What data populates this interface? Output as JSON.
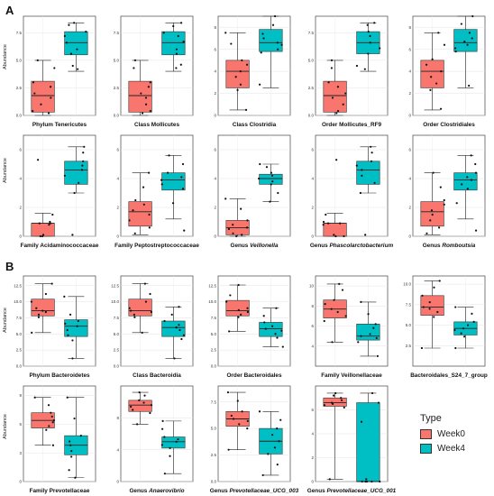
{
  "figure": {
    "section_a": "A",
    "section_b": "B",
    "ylabel": "Abundance",
    "legend": {
      "title": "Type",
      "items": [
        {
          "label": "Week0",
          "color": "#F8766D"
        },
        {
          "label": "Week4",
          "color": "#00BFC4"
        }
      ]
    }
  },
  "chart_data": [
    {
      "type": "box",
      "title": "Phylum Tenericutes",
      "italic": "",
      "ylim": [
        0,
        9
      ],
      "yticks": [
        "0.0",
        "2.5",
        "5.0",
        "7.5"
      ],
      "tickvals": [
        0,
        2.5,
        5,
        7.5
      ],
      "series": [
        {
          "name": "Week0",
          "min": 0,
          "q1": 0.3,
          "median": 1.8,
          "q3": 3.1,
          "max": 5,
          "points": [
            0.2,
            0.4,
            1.0,
            1.6,
            2.0,
            2.6,
            3.0,
            4.3,
            5.0
          ]
        },
        {
          "name": "Week4",
          "min": 4,
          "q1": 5.5,
          "median": 6.6,
          "q3": 7.6,
          "max": 8.4,
          "points": [
            4.2,
            4.5,
            5.6,
            6.0,
            6.6,
            7.2,
            7.6,
            8.2,
            8.4
          ]
        }
      ]
    },
    {
      "type": "box",
      "title": "Class Mollicutes",
      "italic": "",
      "ylim": [
        0,
        9
      ],
      "yticks": [
        "0.0",
        "2.5",
        "5.0",
        "7.5"
      ],
      "tickvals": [
        0,
        2.5,
        5,
        7.5
      ],
      "series": [
        {
          "name": "Week0",
          "min": 0,
          "q1": 0.3,
          "median": 1.8,
          "q3": 3.1,
          "max": 5,
          "points": [
            0.2,
            0.4,
            1.0,
            1.6,
            2.0,
            2.6,
            3.0,
            4.3,
            5.0
          ]
        },
        {
          "name": "Week4",
          "min": 4,
          "q1": 5.5,
          "median": 6.6,
          "q3": 7.6,
          "max": 8.4,
          "points": [
            4.3,
            4.6,
            5.6,
            6.0,
            6.7,
            7.2,
            7.5,
            8.1,
            8.4
          ]
        }
      ]
    },
    {
      "type": "box",
      "title": "Class Clostridia",
      "italic": "",
      "ylim": [
        0,
        9
      ],
      "yticks": [
        "0",
        "2",
        "4",
        "6",
        "8"
      ],
      "tickvals": [
        0,
        2,
        4,
        6,
        8
      ],
      "series": [
        {
          "name": "Week0",
          "min": 0.5,
          "q1": 2.5,
          "median": 4,
          "q3": 5,
          "max": 7.5,
          "points": [
            0.5,
            2.3,
            2.8,
            3.5,
            4.0,
            4.6,
            5.0,
            6.5,
            7.5
          ]
        },
        {
          "name": "Week4",
          "min": 2.5,
          "q1": 5.8,
          "median": 6.6,
          "q3": 7.8,
          "max": 9,
          "points": [
            2.8,
            5.7,
            6.0,
            6.4,
            6.6,
            7.0,
            7.4,
            8.2,
            9.0
          ]
        }
      ]
    },
    {
      "type": "box",
      "title": "Order Mollicutes_RF9",
      "italic": "",
      "ylim": [
        0,
        9
      ],
      "yticks": [
        "0.0",
        "2.5",
        "5.0",
        "7.5"
      ],
      "tickvals": [
        0,
        2.5,
        5,
        7.5
      ],
      "series": [
        {
          "name": "Week0",
          "min": 0,
          "q1": 0.3,
          "median": 1.8,
          "q3": 3.1,
          "max": 5,
          "points": [
            0.2,
            0.4,
            1.0,
            1.6,
            2.0,
            2.6,
            3.0,
            4.3,
            5.0
          ]
        },
        {
          "name": "Week4",
          "min": 4,
          "q1": 5.6,
          "median": 6.6,
          "q3": 7.6,
          "max": 8.4,
          "points": [
            4.2,
            4.5,
            5.6,
            6.1,
            6.6,
            7.2,
            7.6,
            8.2,
            8.4
          ]
        }
      ]
    },
    {
      "type": "box",
      "title": "Order Clostridiales",
      "italic": "",
      "ylim": [
        0,
        9
      ],
      "yticks": [
        "0",
        "2",
        "4",
        "6",
        "8"
      ],
      "tickvals": [
        0,
        2,
        4,
        6,
        8
      ],
      "series": [
        {
          "name": "Week0",
          "min": 0.5,
          "q1": 2.5,
          "median": 4,
          "q3": 5,
          "max": 7.5,
          "points": [
            0.6,
            2.3,
            2.9,
            3.5,
            4.0,
            4.6,
            5.1,
            6.4,
            7.5
          ]
        },
        {
          "name": "Week4",
          "min": 2.5,
          "q1": 5.8,
          "median": 6.6,
          "q3": 7.8,
          "max": 9,
          "points": [
            2.7,
            5.8,
            6.1,
            6.4,
            6.7,
            7.0,
            7.5,
            8.3,
            9.0
          ]
        }
      ]
    },
    {
      "type": "box",
      "title": "Family Acidaminococcaceae",
      "italic": "",
      "ylim": [
        0,
        7
      ],
      "yticks": [
        "0",
        "2",
        "4",
        "6"
      ],
      "tickvals": [
        0,
        2,
        4,
        6
      ],
      "series": [
        {
          "name": "Week0",
          "min": 0,
          "q1": 0,
          "median": 0.9,
          "q3": 0.9,
          "max": 1.6,
          "points": [
            0,
            0,
            0.1,
            0.8,
            0.9,
            0.9,
            1.0,
            1.5,
            5.3
          ]
        },
        {
          "name": "Week4",
          "min": 3,
          "q1": 3.6,
          "median": 4.6,
          "q3": 5.2,
          "max": 6.2,
          "points": [
            0.1,
            3.0,
            3.7,
            4.2,
            4.6,
            4.9,
            5.2,
            5.8,
            6.2
          ]
        }
      ]
    },
    {
      "type": "box",
      "title": "Family Peptostreptococcaceae",
      "italic": "",
      "ylim": [
        0,
        7
      ],
      "yticks": [
        "0",
        "2",
        "4",
        "6"
      ],
      "tickvals": [
        0,
        2,
        4,
        6
      ],
      "series": [
        {
          "name": "Week0",
          "min": 0.1,
          "q1": 0.7,
          "median": 1.7,
          "q3": 2.4,
          "max": 4.4,
          "points": [
            0.2,
            0.6,
            1.1,
            1.5,
            1.8,
            2.2,
            2.5,
            3.4,
            4.4
          ]
        },
        {
          "name": "Week4",
          "min": 1.2,
          "q1": 3.2,
          "median": 3.9,
          "q3": 4.4,
          "max": 5.6,
          "points": [
            0.4,
            2.3,
            3.3,
            3.6,
            3.9,
            4.1,
            4.4,
            5.0,
            5.6
          ]
        }
      ]
    },
    {
      "type": "box",
      "title": "Genus ",
      "italic": "Veillonella",
      "ylim": [
        0,
        7
      ],
      "yticks": [
        "0",
        "2",
        "4",
        "6"
      ],
      "tickvals": [
        0,
        2,
        4,
        6
      ],
      "series": [
        {
          "name": "Week0",
          "min": 0,
          "q1": 0.1,
          "median": 0.6,
          "q3": 1.1,
          "max": 2.6,
          "points": [
            0,
            0.1,
            0.2,
            0.5,
            0.6,
            0.8,
            1.1,
            1.9,
            2.6
          ]
        },
        {
          "name": "Week4",
          "min": 2.4,
          "q1": 3.6,
          "median": 4.0,
          "q3": 4.3,
          "max": 5.0,
          "points": [
            2.4,
            3.0,
            3.6,
            3.8,
            4.0,
            4.2,
            4.4,
            4.8,
            5.0
          ]
        }
      ]
    },
    {
      "type": "box",
      "title": "Genus ",
      "italic": "Phascolarctobacterium",
      "ylim": [
        0,
        7
      ],
      "yticks": [
        "0",
        "2",
        "4",
        "6"
      ],
      "tickvals": [
        0,
        2,
        4,
        6
      ],
      "series": [
        {
          "name": "Week0",
          "min": 0,
          "q1": 0,
          "median": 0.9,
          "q3": 0.9,
          "max": 1.6,
          "points": [
            0,
            0,
            0.1,
            0.8,
            0.9,
            0.9,
            1.0,
            1.5,
            5.3
          ]
        },
        {
          "name": "Week4",
          "min": 3,
          "q1": 3.6,
          "median": 4.6,
          "q3": 5.2,
          "max": 6.2,
          "points": [
            0.1,
            3.0,
            3.7,
            4.2,
            4.6,
            4.9,
            5.2,
            5.8,
            6.2
          ]
        }
      ]
    },
    {
      "type": "box",
      "title": "Genus ",
      "italic": "Romboutsia",
      "ylim": [
        0,
        7
      ],
      "yticks": [
        "0",
        "2",
        "4",
        "6"
      ],
      "tickvals": [
        0,
        2,
        4,
        6
      ],
      "series": [
        {
          "name": "Week0",
          "min": 0.1,
          "q1": 0.7,
          "median": 1.7,
          "q3": 2.4,
          "max": 4.4,
          "points": [
            0.2,
            0.6,
            1.1,
            1.5,
            1.8,
            2.2,
            2.5,
            3.4,
            4.4
          ]
        },
        {
          "name": "Week4",
          "min": 1.2,
          "q1": 3.2,
          "median": 3.9,
          "q3": 4.4,
          "max": 5.6,
          "points": [
            0.4,
            2.3,
            3.3,
            3.6,
            3.9,
            4.1,
            4.4,
            5.0,
            5.6
          ]
        }
      ]
    },
    {
      "type": "box",
      "title": "Phylum Bacteroidetes",
      "italic": "",
      "ylim": [
        0,
        14
      ],
      "yticks": [
        "0.0",
        "2.5",
        "5.0",
        "7.5",
        "10.0",
        "12.5"
      ],
      "tickvals": [
        0,
        2.5,
        5,
        7.5,
        10,
        12.5
      ],
      "series": [
        {
          "name": "Week0",
          "min": 5.2,
          "q1": 7.8,
          "median": 8.6,
          "q3": 10.4,
          "max": 12.8,
          "points": [
            5.2,
            7.6,
            8.0,
            8.4,
            8.6,
            9.0,
            10.0,
            11.2,
            12.8
          ]
        },
        {
          "name": "Week4",
          "min": 1.2,
          "q1": 4.6,
          "median": 6.2,
          "q3": 7.2,
          "max": 10.8,
          "points": [
            1.2,
            4.0,
            4.8,
            5.6,
            6.2,
            6.6,
            7.0,
            8.0,
            10.8
          ]
        }
      ]
    },
    {
      "type": "box",
      "title": "Class Bacteroidia",
      "italic": "",
      "ylim": [
        0,
        14
      ],
      "yticks": [
        "0.0",
        "2.5",
        "5.0",
        "7.5",
        "10.0",
        "12.5"
      ],
      "tickvals": [
        0,
        2.5,
        5,
        7.5,
        10,
        12.5
      ],
      "series": [
        {
          "name": "Week0",
          "min": 5.2,
          "q1": 7.8,
          "median": 8.6,
          "q3": 10.4,
          "max": 12.8,
          "points": [
            5.2,
            7.6,
            8.0,
            8.4,
            8.6,
            9.0,
            10.0,
            11.2,
            12.8
          ]
        },
        {
          "name": "Week4",
          "min": 1.2,
          "q1": 4.6,
          "median": 6.0,
          "q3": 7.0,
          "max": 9.2,
          "points": [
            1.2,
            4.2,
            4.8,
            5.6,
            6.0,
            6.4,
            7.0,
            8.0,
            9.2
          ]
        }
      ]
    },
    {
      "type": "box",
      "title": "Order Bacteroidales",
      "italic": "",
      "ylim": [
        0,
        14
      ],
      "yticks": [
        "0.0",
        "2.5",
        "5.0",
        "7.5",
        "10.0",
        "12.5"
      ],
      "tickvals": [
        0,
        2.5,
        5,
        7.5,
        10,
        12.5
      ],
      "series": [
        {
          "name": "Week0",
          "min": 5.4,
          "q1": 7.8,
          "median": 8.6,
          "q3": 10.2,
          "max": 12.6,
          "points": [
            5.4,
            7.6,
            8.0,
            8.4,
            8.7,
            9.0,
            10.0,
            11.0,
            12.6
          ]
        },
        {
          "name": "Week4",
          "min": 3.0,
          "q1": 4.6,
          "median": 5.8,
          "q3": 6.8,
          "max": 9.0,
          "points": [
            3.0,
            4.4,
            5.0,
            5.5,
            5.8,
            6.2,
            6.8,
            7.8,
            9.0
          ]
        }
      ]
    },
    {
      "type": "box",
      "title": "Family Veillonellaceae",
      "italic": "",
      "ylim": [
        2,
        11
      ],
      "yticks": [
        "4",
        "6",
        "8",
        "10"
      ],
      "tickvals": [
        4,
        6,
        8,
        10
      ],
      "series": [
        {
          "name": "Week0",
          "min": 4.4,
          "q1": 6.8,
          "median": 7.7,
          "q3": 8.6,
          "max": 10.2,
          "points": [
            4.4,
            6.5,
            7.0,
            7.4,
            7.7,
            8.2,
            8.6,
            9.6,
            10.2
          ]
        },
        {
          "name": "Week4",
          "min": 3.0,
          "q1": 4.6,
          "median": 5.0,
          "q3": 6.2,
          "max": 8.4,
          "points": [
            3.0,
            4.4,
            4.8,
            5.0,
            5.2,
            5.8,
            6.2,
            7.2,
            8.4
          ]
        }
      ]
    },
    {
      "type": "box",
      "title": "Bacteroidales_S24_7_group",
      "italic": "",
      "ylim": [
        0,
        11
      ],
      "yticks": [
        "2.5",
        "5.0",
        "7.5",
        "10.0"
      ],
      "tickvals": [
        2.5,
        5,
        7.5,
        10
      ],
      "series": [
        {
          "name": "Week0",
          "min": 2.2,
          "q1": 6.2,
          "median": 7.2,
          "q3": 8.6,
          "max": 10.4,
          "points": [
            2.2,
            6.0,
            6.6,
            7.0,
            7.2,
            7.8,
            8.6,
            9.6,
            10.4
          ]
        },
        {
          "name": "Week4",
          "min": 2.2,
          "q1": 3.8,
          "median": 4.6,
          "q3": 5.4,
          "max": 7.2,
          "points": [
            2.2,
            3.6,
            4.0,
            4.4,
            4.6,
            5.0,
            5.4,
            6.4,
            7.2
          ]
        }
      ]
    },
    {
      "type": "box",
      "title": "Family Prevotellaceae",
      "italic": "",
      "ylim": [
        0,
        10
      ],
      "yticks": [
        "0",
        "3",
        "6",
        "9"
      ],
      "tickvals": [
        0,
        3,
        6,
        9
      ],
      "series": [
        {
          "name": "Week0",
          "min": 3.8,
          "q1": 5.6,
          "median": 6.4,
          "q3": 7.2,
          "max": 8.8,
          "points": [
            3.8,
            5.4,
            5.8,
            6.2,
            6.4,
            6.8,
            7.2,
            8.0,
            8.8
          ]
        },
        {
          "name": "Week4",
          "min": 0.4,
          "q1": 2.8,
          "median": 3.8,
          "q3": 4.8,
          "max": 8.8,
          "points": [
            0.4,
            1.2,
            2.6,
            3.2,
            3.8,
            4.2,
            4.8,
            6.6,
            8.8
          ]
        }
      ]
    },
    {
      "type": "box",
      "title": "Genus ",
      "italic": "Anaerovibrio",
      "ylim": [
        0,
        12
      ],
      "yticks": [
        "0",
        "4",
        "8"
      ],
      "tickvals": [
        0,
        4,
        8
      ],
      "series": [
        {
          "name": "Week0",
          "min": 7.2,
          "q1": 8.8,
          "median": 9.6,
          "q3": 10.2,
          "max": 11.2,
          "points": [
            7.2,
            8.6,
            9.0,
            9.4,
            9.6,
            9.9,
            10.2,
            10.8,
            11.2
          ]
        },
        {
          "name": "Week4",
          "min": 1.0,
          "q1": 4.2,
          "median": 5.0,
          "q3": 5.6,
          "max": 7.6,
          "points": [
            1.0,
            3.2,
            4.2,
            4.6,
            5.0,
            5.3,
            5.6,
            6.6,
            7.6
          ]
        }
      ]
    },
    {
      "type": "box",
      "title": "Genus ",
      "italic": "Prevotellaceae_UCG_003",
      "ylim": [
        0,
        9
      ],
      "yticks": [
        "0.0",
        "2.5",
        "5.0",
        "7.5"
      ],
      "tickvals": [
        0,
        2.5,
        5,
        7.5
      ],
      "series": [
        {
          "name": "Week0",
          "min": 3.0,
          "q1": 5.2,
          "median": 5.9,
          "q3": 6.6,
          "max": 8.4,
          "points": [
            3.0,
            5.0,
            5.4,
            5.7,
            5.9,
            6.2,
            6.6,
            7.6,
            8.4
          ]
        },
        {
          "name": "Week4",
          "min": 0.6,
          "q1": 2.6,
          "median": 3.8,
          "q3": 5.0,
          "max": 6.6,
          "points": [
            0.6,
            1.6,
            2.6,
            3.2,
            3.8,
            4.4,
            5.0,
            5.8,
            6.6
          ]
        }
      ]
    },
    {
      "type": "box",
      "title": "Genus ",
      "italic": "Prevotellaceae_UCG_001",
      "ylim": [
        0,
        8
      ],
      "yticks": [
        "0",
        "2",
        "4",
        "6"
      ],
      "tickvals": [
        0,
        2,
        4,
        6
      ],
      "series": [
        {
          "name": "Week0",
          "min": 0.2,
          "q1": 6.3,
          "median": 6.6,
          "q3": 7.0,
          "max": 7.4,
          "points": [
            0.2,
            6.2,
            6.4,
            6.5,
            6.6,
            6.8,
            7.0,
            7.2,
            7.4
          ]
        },
        {
          "name": "Week4",
          "min": 0,
          "q1": 0,
          "median": 0,
          "q3": 6.6,
          "max": 7.4,
          "points": [
            0,
            0,
            0,
            0,
            0,
            0.2,
            5.0,
            6.6,
            7.4
          ]
        }
      ]
    }
  ]
}
